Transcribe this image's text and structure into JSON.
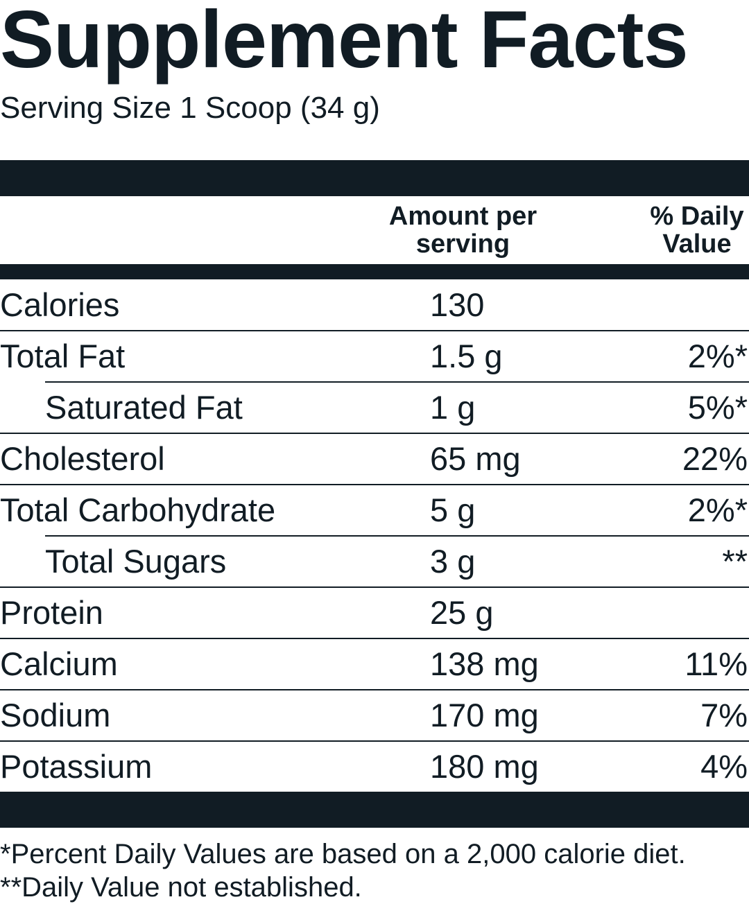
{
  "header": {
    "title": "Supplement Facts",
    "serving_size": "Serving Size 1 Scoop (34 g)"
  },
  "table": {
    "columns": {
      "amount": "Amount per serving",
      "daily_value": "% Daily Value"
    },
    "rows": [
      {
        "name": "Calories",
        "amount": "130"
      },
      {
        "name": "Total Fat",
        "amount": "1.5 g",
        "daily_value": "2%*",
        "sub_rows": [
          {
            "name": "Saturated Fat",
            "amount": "1 g",
            "daily_value": "5%*"
          }
        ]
      },
      {
        "name": "Cholesterol",
        "amount": "65 mg",
        "daily_value": "22%"
      },
      {
        "name": "Total Carbohydrate",
        "amount": "5 g",
        "daily_value": "2%*",
        "sub_rows": [
          {
            "name": "Total Sugars",
            "amount": "3 g",
            "daily_value": "**"
          }
        ]
      },
      {
        "name": "Protein",
        "amount": "25 g"
      },
      {
        "name": "Calcium",
        "amount": "138 mg",
        "daily_value": "11%"
      },
      {
        "name": "Sodium",
        "amount": "170 mg",
        "daily_value": "7%"
      },
      {
        "name": "Potassium",
        "amount": "180 mg",
        "daily_value": "4%"
      }
    ]
  },
  "footnotes": [
    "*Percent Daily Values are based on a 2,000 calorie diet.",
    "**Daily Value not established."
  ]
}
